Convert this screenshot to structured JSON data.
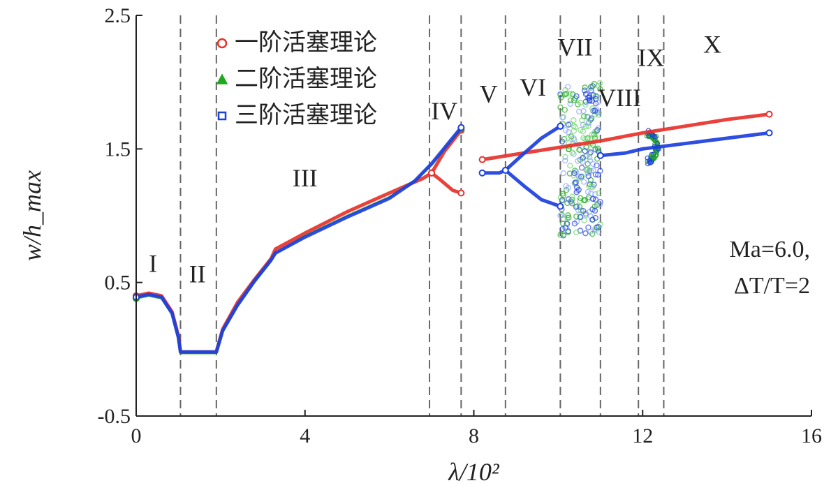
{
  "chart_data": {
    "type": "scatter",
    "xlabel": "λ/10²",
    "ylabel": "w/h_max",
    "xlim": [
      0,
      16
    ],
    "ylim": [
      -0.5,
      2.5
    ],
    "x_ticks": [
      {
        "value": 0,
        "label": "0"
      },
      {
        "value": 4,
        "label": "4"
      },
      {
        "value": 8,
        "label": "8"
      },
      {
        "value": 12,
        "label": "12"
      },
      {
        "value": 16,
        "label": "16"
      }
    ],
    "y_ticks": [
      {
        "value": -0.5,
        "label": "-0.5"
      },
      {
        "value": 0.5,
        "label": "0.5"
      },
      {
        "value": 1.5,
        "label": "1.5"
      },
      {
        "value": 2.5,
        "label": "2.5"
      }
    ],
    "grid": false,
    "legend_position": "top-left",
    "region_boundaries": [
      1.05,
      1.9,
      6.95,
      7.7,
      8.75,
      10.05,
      11.0,
      11.9,
      12.5
    ],
    "regions": [
      {
        "label": "I",
        "x": 0.4,
        "y": 0.58
      },
      {
        "label": "II",
        "x": 1.45,
        "y": 0.5
      },
      {
        "label": "III",
        "x": 4.0,
        "y": 1.22
      },
      {
        "label": "IV",
        "x": 7.3,
        "y": 1.72
      },
      {
        "label": "V",
        "x": 8.35,
        "y": 1.85
      },
      {
        "label": "VI",
        "x": 9.4,
        "y": 1.9
      },
      {
        "label": "VII",
        "x": 10.4,
        "y": 2.2
      },
      {
        "label": "VIII",
        "x": 11.45,
        "y": 1.82
      },
      {
        "label": "IX",
        "x": 12.2,
        "y": 2.12
      },
      {
        "label": "X",
        "x": 13.65,
        "y": 2.22
      }
    ],
    "annotations": [
      "Ma=6.0,",
      "ΔT/T=2"
    ],
    "series": [
      {
        "name": "一阶活塞理论",
        "color": "#e8312a",
        "marker": "circle",
        "branches": [
          [
            [
              0,
              0.4
            ],
            [
              0.3,
              0.42
            ],
            [
              0.6,
              0.4
            ],
            [
              0.85,
              0.28
            ],
            [
              1.0,
              0.1
            ],
            [
              1.05,
              -0.02
            ],
            [
              1.9,
              -0.02
            ],
            [
              2.05,
              0.15
            ],
            [
              2.4,
              0.35
            ],
            [
              2.8,
              0.52
            ],
            [
              3.2,
              0.68
            ],
            [
              3.3,
              0.75
            ],
            [
              4.0,
              0.87
            ],
            [
              5.0,
              1.03
            ],
            [
              6.0,
              1.17
            ],
            [
              6.8,
              1.28
            ],
            [
              7.0,
              1.32
            ]
          ],
          [
            [
              7.0,
              1.32
            ],
            [
              7.2,
              1.27
            ],
            [
              7.5,
              1.19
            ],
            [
              7.7,
              1.17
            ]
          ],
          [
            [
              7.0,
              1.32
            ],
            [
              7.3,
              1.48
            ],
            [
              7.7,
              1.64
            ]
          ],
          [
            [
              8.2,
              1.42
            ],
            [
              9.0,
              1.46
            ],
            [
              10.0,
              1.51
            ],
            [
              11.0,
              1.56
            ],
            [
              12.0,
              1.62
            ],
            [
              13.0,
              1.67
            ],
            [
              14.0,
              1.72
            ],
            [
              15.0,
              1.76
            ]
          ]
        ]
      },
      {
        "name": "二阶活塞理论",
        "color": "#1ea81e",
        "marker": "triangle",
        "branches": [
          [
            [
              0,
              0.38
            ],
            [
              0.3,
              0.4
            ],
            [
              0.6,
              0.38
            ],
            [
              0.85,
              0.26
            ],
            [
              1.0,
              0.08
            ],
            [
              1.05,
              -0.03
            ],
            [
              1.9,
              -0.03
            ],
            [
              2.05,
              0.13
            ],
            [
              2.4,
              0.32
            ],
            [
              2.8,
              0.5
            ],
            [
              3.2,
              0.66
            ],
            [
              3.3,
              0.72
            ],
            [
              4.0,
              0.85
            ],
            [
              5.0,
              1.0
            ],
            [
              6.0,
              1.14
            ],
            [
              6.6,
              1.26
            ],
            [
              7.0,
              1.38
            ],
            [
              7.7,
              1.65
            ]
          ]
        ]
      },
      {
        "name": "三阶活塞理论",
        "color": "#1c3fe0",
        "marker": "square",
        "branches": [
          [
            [
              0,
              0.39
            ],
            [
              0.3,
              0.41
            ],
            [
              0.6,
              0.39
            ],
            [
              0.85,
              0.27
            ],
            [
              1.0,
              0.09
            ],
            [
              1.05,
              -0.02
            ],
            [
              1.9,
              -0.02
            ],
            [
              2.05,
              0.14
            ],
            [
              2.4,
              0.33
            ],
            [
              2.8,
              0.51
            ],
            [
              3.2,
              0.67
            ],
            [
              3.3,
              0.72
            ],
            [
              4.0,
              0.84
            ],
            [
              5.0,
              0.99
            ],
            [
              6.0,
              1.13
            ],
            [
              6.6,
              1.26
            ],
            [
              7.0,
              1.39
            ],
            [
              7.7,
              1.66
            ]
          ],
          [
            [
              8.2,
              1.32
            ],
            [
              8.6,
              1.32
            ],
            [
              8.75,
              1.34
            ],
            [
              9.2,
              1.47
            ],
            [
              9.6,
              1.58
            ],
            [
              10.05,
              1.67
            ]
          ],
          [
            [
              8.75,
              1.34
            ],
            [
              9.2,
              1.22
            ],
            [
              9.6,
              1.12
            ],
            [
              10.05,
              1.07
            ]
          ],
          [
            [
              11.0,
              1.45
            ],
            [
              11.6,
              1.47
            ],
            [
              12.0,
              1.5
            ],
            [
              12.5,
              1.52
            ],
            [
              13.0,
              1.54
            ],
            [
              14.0,
              1.58
            ],
            [
              15.0,
              1.62
            ]
          ]
        ]
      }
    ]
  }
}
